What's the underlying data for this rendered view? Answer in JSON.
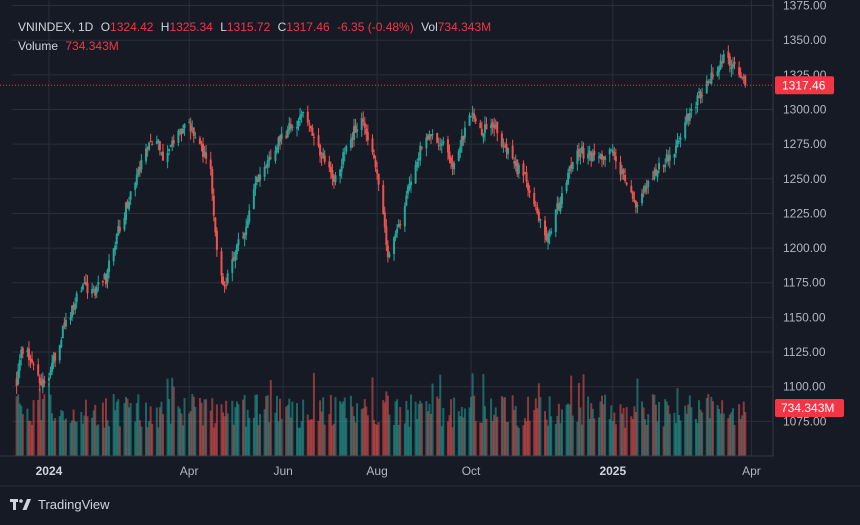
{
  "legend": {
    "symbol": "VNINDEX, 1D",
    "o_label": "O",
    "o": "1324.42",
    "h_label": "H",
    "h": "1325.34",
    "l_label": "L",
    "l": "1315.72",
    "c_label": "C",
    "c": "1317.46",
    "change": "-6.35 (-0.48%)",
    "vol_label": "Vol",
    "vol": "734.343M",
    "volume_label": "Volume",
    "volume": "734.343M"
  },
  "colors": {
    "up": "#26a69a",
    "down": "#ef5350",
    "background": "#161a25",
    "grid": "#2a2e39",
    "badge": "#f23645"
  },
  "footer": {
    "brand": "TradingView",
    "logo_icon": "tradingview-logo-icon"
  },
  "chart_data": {
    "type": "candlestick",
    "price_ticks": [
      1075,
      1100,
      1125,
      1150,
      1175,
      1200,
      1225,
      1250,
      1275,
      1300,
      1325,
      1350,
      1375
    ],
    "price_tick_labels": [
      "1075.00",
      "1100.00",
      "1125.00",
      "1150.00",
      "1175.00",
      "1200.00",
      "1225.00",
      "1250.00",
      "1275.00",
      "1300.00",
      "1325.00",
      "1350.00",
      "1375.00"
    ],
    "ylim": [
      1050,
      1379
    ],
    "time_labels": [
      {
        "date": "2024-01-01",
        "text": "2024",
        "bold": true
      },
      {
        "date": "2024-04-01",
        "text": "Apr",
        "bold": false
      },
      {
        "date": "2024-06-01",
        "text": "Jun",
        "bold": false
      },
      {
        "date": "2024-08-01",
        "text": "Aug",
        "bold": false
      },
      {
        "date": "2024-10-01",
        "text": "Oct",
        "bold": false
      },
      {
        "date": "2025-01-01",
        "text": "2025",
        "bold": true
      },
      {
        "date": "2025-04-01",
        "text": "Apr",
        "bold": false
      }
    ],
    "xlim": [
      "2023-12-08",
      "2025-04-15"
    ],
    "last_price": 1317.46,
    "last_price_label": "1317.46",
    "last_volume_label": "734.343M",
    "close_path": [
      [
        "2023-12-11",
        1105
      ],
      [
        "2023-12-15",
        1128
      ],
      [
        "2023-12-20",
        1120
      ],
      [
        "2023-12-27",
        1100
      ],
      [
        "2024-01-03",
        1115
      ],
      [
        "2024-01-10",
        1140
      ],
      [
        "2024-01-17",
        1160
      ],
      [
        "2024-01-24",
        1172
      ],
      [
        "2024-01-31",
        1170
      ],
      [
        "2024-02-07",
        1178
      ],
      [
        "2024-02-14",
        1210
      ],
      [
        "2024-02-21",
        1232
      ],
      [
        "2024-02-28",
        1255
      ],
      [
        "2024-03-06",
        1275
      ],
      [
        "2024-03-11",
        1280
      ],
      [
        "2024-03-15",
        1260
      ],
      [
        "2024-03-20",
        1272
      ],
      [
        "2024-03-27",
        1285
      ],
      [
        "2024-04-01",
        1290
      ],
      [
        "2024-04-05",
        1280
      ],
      [
        "2024-04-10",
        1270
      ],
      [
        "2024-04-15",
        1255
      ],
      [
        "2024-04-19",
        1200
      ],
      [
        "2024-04-24",
        1172
      ],
      [
        "2024-04-30",
        1195
      ],
      [
        "2024-05-07",
        1215
      ],
      [
        "2024-05-14",
        1245
      ],
      [
        "2024-05-21",
        1262
      ],
      [
        "2024-05-28",
        1275
      ],
      [
        "2024-06-04",
        1285
      ],
      [
        "2024-06-11",
        1292
      ],
      [
        "2024-06-14",
        1300
      ],
      [
        "2024-06-19",
        1285
      ],
      [
        "2024-06-26",
        1268
      ],
      [
        "2024-07-03",
        1250
      ],
      [
        "2024-07-10",
        1265
      ],
      [
        "2024-07-17",
        1285
      ],
      [
        "2024-07-22",
        1292
      ],
      [
        "2024-07-29",
        1270
      ],
      [
        "2024-08-05",
        1225
      ],
      [
        "2024-08-08",
        1195
      ],
      [
        "2024-08-15",
        1215
      ],
      [
        "2024-08-22",
        1245
      ],
      [
        "2024-08-29",
        1270
      ],
      [
        "2024-09-05",
        1285
      ],
      [
        "2024-09-12",
        1275
      ],
      [
        "2024-09-19",
        1260
      ],
      [
        "2024-09-26",
        1280
      ],
      [
        "2024-10-01",
        1295
      ],
      [
        "2024-10-08",
        1285
      ],
      [
        "2024-10-15",
        1290
      ],
      [
        "2024-10-22",
        1275
      ],
      [
        "2024-10-29",
        1260
      ],
      [
        "2024-11-05",
        1250
      ],
      [
        "2024-11-12",
        1232
      ],
      [
        "2024-11-18",
        1205
      ],
      [
        "2024-11-25",
        1225
      ],
      [
        "2024-12-02",
        1250
      ],
      [
        "2024-12-09",
        1270
      ],
      [
        "2024-12-16",
        1268
      ],
      [
        "2024-12-23",
        1262
      ],
      [
        "2024-12-30",
        1275
      ],
      [
        "2025-01-06",
        1255
      ],
      [
        "2025-01-13",
        1240
      ],
      [
        "2025-01-17",
        1228
      ],
      [
        "2025-01-24",
        1250
      ],
      [
        "2025-02-03",
        1262
      ],
      [
        "2025-02-10",
        1272
      ],
      [
        "2025-02-17",
        1290
      ],
      [
        "2025-02-24",
        1305
      ],
      [
        "2025-03-03",
        1318
      ],
      [
        "2025-03-10",
        1330
      ],
      [
        "2025-03-14",
        1338
      ],
      [
        "2025-03-19",
        1332
      ],
      [
        "2025-03-24",
        1325
      ],
      [
        "2025-03-28",
        1317.46
      ]
    ],
    "volume_note": "Volume bars at chart bottom; last bar 734.343M"
  }
}
